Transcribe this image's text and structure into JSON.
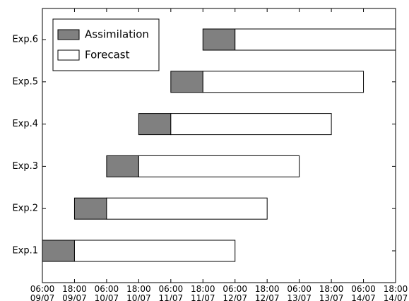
{
  "chart_data": {
    "type": "gantt",
    "categories": [
      "Exp.1",
      "Exp.2",
      "Exp.3",
      "Exp.4",
      "Exp.5",
      "Exp.6"
    ],
    "series": [
      {
        "name": "Assimilation",
        "color": "#808080",
        "values": [
          [
            "09/07 06:00",
            "09/07 18:00"
          ],
          [
            "09/07 18:00",
            "10/07 06:00"
          ],
          [
            "10/07 06:00",
            "10/07 18:00"
          ],
          [
            "10/07 18:00",
            "11/07 06:00"
          ],
          [
            "11/07 06:00",
            "11/07 18:00"
          ],
          [
            "11/07 18:00",
            "12/07 06:00"
          ]
        ]
      },
      {
        "name": "Forecast",
        "color": "#ffffff",
        "values": [
          [
            "09/07 18:00",
            "12/07 06:00"
          ],
          [
            "10/07 06:00",
            "12/07 18:00"
          ],
          [
            "10/07 18:00",
            "13/07 06:00"
          ],
          [
            "11/07 06:00",
            "13/07 18:00"
          ],
          [
            "11/07 18:00",
            "14/07 06:00"
          ],
          [
            "12/07 06:00",
            "14/07 18:00"
          ]
        ]
      }
    ],
    "xlim": [
      "09/07 06:00",
      "14/07 18:00"
    ],
    "xticks": [
      {
        "value": "09/07 06:00",
        "label": [
          "06:00",
          "09/07"
        ]
      },
      {
        "value": "09/07 18:00",
        "label": [
          "18:00",
          "09/07"
        ]
      },
      {
        "value": "10/07 06:00",
        "label": [
          "06:00",
          "10/07"
        ]
      },
      {
        "value": "10/07 18:00",
        "label": [
          "18:00",
          "10/07"
        ]
      },
      {
        "value": "11/07 06:00",
        "label": [
          "06:00",
          "11/07"
        ]
      },
      {
        "value": "11/07 18:00",
        "label": [
          "18:00",
          "11/07"
        ]
      },
      {
        "value": "12/07 06:00",
        "label": [
          "06:00",
          "12/07"
        ]
      },
      {
        "value": "12/07 18:00",
        "label": [
          "18:00",
          "12/07"
        ]
      },
      {
        "value": "13/07 06:00",
        "label": [
          "06:00",
          "13/07"
        ]
      },
      {
        "value": "13/07 18:00",
        "label": [
          "18:00",
          "13/07"
        ]
      },
      {
        "value": "14/07 06:00",
        "label": [
          "06:00",
          "14/07"
        ]
      },
      {
        "value": "14/07 18:00",
        "label": [
          "18:00",
          "14/07"
        ]
      }
    ],
    "legend": "upper left"
  }
}
